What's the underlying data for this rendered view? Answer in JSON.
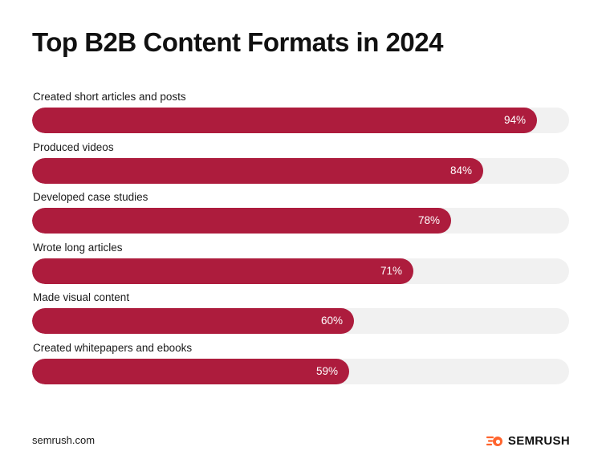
{
  "chart_data": {
    "type": "bar",
    "orientation": "horizontal",
    "title": "Top B2B Content Formats in 2024",
    "categories": [
      "Created short articles and posts",
      "Produced videos",
      "Developed case studies",
      "Wrote long articles",
      "Made visual content",
      "Created whitepapers and ebooks"
    ],
    "values": [
      94,
      84,
      78,
      71,
      60,
      59
    ],
    "value_labels": [
      "94%",
      "84%",
      "78%",
      "71%",
      "60%",
      "59%"
    ],
    "xlim": [
      0,
      100
    ],
    "grid": false,
    "bar_color": "#ad1c3d",
    "track_color": "#f1f1f1"
  },
  "footer": {
    "source": "semrush.com",
    "brand_name": "SEMRUSH",
    "brand_icon": "semrush-flame-logo",
    "brand_color": "#ff642d"
  }
}
